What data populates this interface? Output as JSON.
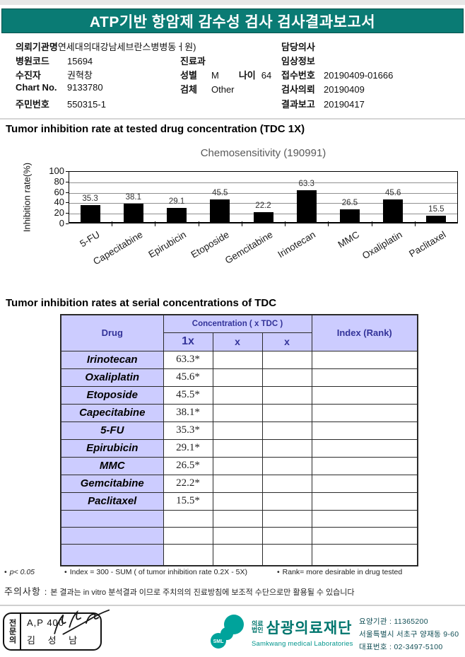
{
  "colors": {
    "banner_bg": "#0a7b74",
    "table_header_bg": "#ccccff",
    "table_header_text": "#333399",
    "bar_color": "#000000",
    "logo_teal": "#00a39b"
  },
  "banner": {
    "title": "ATP기반 항암제 감수성 검사 검사결과보고서"
  },
  "patient": {
    "org_label": "의뢰기관명",
    "org_value": "연세대의대강남세브란스병병동ㅓ원)",
    "hospital_code_label": "병원코드",
    "hospital_code_value": "15694",
    "patient_label": "수진자",
    "patient_value": "권혁창",
    "chart_no_label": "Chart No.",
    "chart_no_value": "9133780",
    "resident_label": "주민번호",
    "resident_value": "550315-1",
    "dept_label": "진료과",
    "dept_value": "",
    "sex_label": "성별",
    "sex_value": "M",
    "age_label": "나이",
    "age_value": "64",
    "specimen_label": "검체",
    "specimen_value": "Other",
    "doctor_label": "담당의사",
    "doctor_value": "",
    "clinical_label": "임상정보",
    "clinical_value": "",
    "receipt_label": "접수번호",
    "receipt_value": "20190409-01666",
    "request_label": "검사의뢰",
    "request_value": "20190409",
    "report_label": "결과보고",
    "report_value": "20190417"
  },
  "section1_title": "Tumor inhibition rate at tested drug concentration (TDC 1X)",
  "chart_data": {
    "type": "bar",
    "title": "Chemosensitivity (190991)",
    "ylabel": "Inhibition rate(%)",
    "categories": [
      "5-FU",
      "Capecitabine",
      "Epirubicin",
      "Etoposide",
      "Gemcitabine",
      "Irinotecan",
      "MMC",
      "Oxaliplatin",
      "Paclitaxel"
    ],
    "values": [
      35.3,
      38.1,
      29.1,
      45.5,
      22.2,
      63.3,
      26.5,
      45.6,
      15.5
    ],
    "ylim": [
      0,
      100
    ],
    "yticks": [
      0,
      20,
      40,
      60,
      80,
      100
    ],
    "grid": true,
    "legend": false,
    "bar_color": "#000000"
  },
  "section2_title": "Tumor inhibition rates at serial concentrations of TDC",
  "table": {
    "header": {
      "drug": "Drug",
      "concentration": "Concentration ( x TDC )",
      "c1": "1x",
      "c2": "x",
      "c3": "x",
      "index": "Index (Rank)"
    },
    "rows": [
      {
        "drug": "Irinotecan",
        "c1": "63.3*",
        "c2": "",
        "c3": "",
        "index": ""
      },
      {
        "drug": "Oxaliplatin",
        "c1": "45.6*",
        "c2": "",
        "c3": "",
        "index": ""
      },
      {
        "drug": "Etoposide",
        "c1": "45.5*",
        "c2": "",
        "c3": "",
        "index": ""
      },
      {
        "drug": "Capecitabine",
        "c1": "38.1*",
        "c2": "",
        "c3": "",
        "index": ""
      },
      {
        "drug": "5-FU",
        "c1": "35.3*",
        "c2": "",
        "c3": "",
        "index": ""
      },
      {
        "drug": "Epirubicin",
        "c1": "29.1*",
        "c2": "",
        "c3": "",
        "index": ""
      },
      {
        "drug": "MMC",
        "c1": "26.5*",
        "c2": "",
        "c3": "",
        "index": ""
      },
      {
        "drug": "Gemcitabine",
        "c1": "22.2*",
        "c2": "",
        "c3": "",
        "index": ""
      },
      {
        "drug": "Paclitaxel",
        "c1": "15.5*",
        "c2": "",
        "c3": "",
        "index": ""
      }
    ],
    "empty_rows": 3
  },
  "footnotes": [
    "p< 0.05",
    "Index = 300 - SUM ( of tumor inhibition rate 0.2X  -  5X)",
    "Rank= more desirable in drug tested"
  ],
  "caution": {
    "label": "주의사항",
    "separator": ":",
    "text": "본 결과는 in vitro 분석결과 이므로 주치의의 진료방침에 보조적 수단으로만 활용될 수 있습니다"
  },
  "footer": {
    "stamp": {
      "side": "전문의",
      "line1": "A,P 400",
      "line2": "김 성 남"
    },
    "logo_text": "SML",
    "org_type_line1": "의료",
    "org_type_line2": "법인",
    "org_name": "삼광의료재단",
    "org_sub": "Samkwang medical Laboratories",
    "info": [
      "요양기관 : 11365200",
      "서울특별시 서초구 양재동 9-60",
      "대표번호 : 02-3497-5100"
    ]
  }
}
